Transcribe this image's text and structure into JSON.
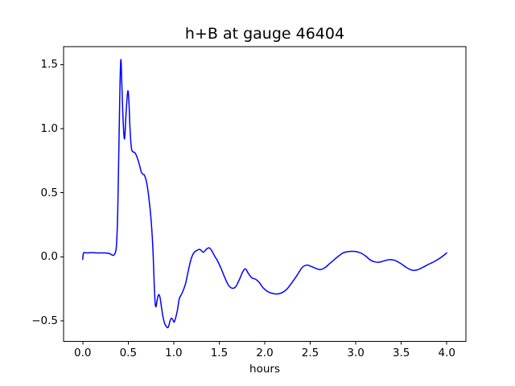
{
  "figure": {
    "background": "#ffffff",
    "frame_color": "#000000",
    "text_color": "#000000"
  },
  "chart_data": {
    "type": "line",
    "title": "h+B at gauge 46404",
    "xlabel": "hours",
    "ylabel": "",
    "grid": false,
    "legend": null,
    "xlim": [
      -0.21,
      4.21
    ],
    "ylim": [
      -0.66,
      1.64
    ],
    "xticks": [
      0.0,
      0.5,
      1.0,
      1.5,
      2.0,
      2.5,
      3.0,
      3.5,
      4.0
    ],
    "xtick_labels": [
      "0.0",
      "0.5",
      "1.0",
      "1.5",
      "2.0",
      "2.5",
      "3.0",
      "3.5",
      "4.0"
    ],
    "yticks": [
      -0.5,
      0.0,
      0.5,
      1.0,
      1.5
    ],
    "ytick_labels": [
      "−0.5",
      "0.0",
      "0.5",
      "1.0",
      "1.5"
    ],
    "series": [
      {
        "color": "#0000ff",
        "line_width": 1.5,
        "points": [
          [
            0.0,
            -0.02
          ],
          [
            0.01,
            0.03
          ],
          [
            0.04,
            0.03
          ],
          [
            0.08,
            0.032
          ],
          [
            0.12,
            0.032
          ],
          [
            0.16,
            0.03
          ],
          [
            0.2,
            0.03
          ],
          [
            0.24,
            0.03
          ],
          [
            0.28,
            0.028
          ],
          [
            0.31,
            0.02
          ],
          [
            0.33,
            0.012
          ],
          [
            0.35,
            0.02
          ],
          [
            0.37,
            0.08
          ],
          [
            0.385,
            0.35
          ],
          [
            0.4,
            0.95
          ],
          [
            0.41,
            1.35
          ],
          [
            0.42,
            1.54
          ],
          [
            0.43,
            1.35
          ],
          [
            0.445,
            1.05
          ],
          [
            0.46,
            0.92
          ],
          [
            0.475,
            1.1
          ],
          [
            0.49,
            1.26
          ],
          [
            0.5,
            1.29
          ],
          [
            0.51,
            1.18
          ],
          [
            0.52,
            1.0
          ],
          [
            0.535,
            0.85
          ],
          [
            0.55,
            0.82
          ],
          [
            0.57,
            0.815
          ],
          [
            0.59,
            0.79
          ],
          [
            0.61,
            0.75
          ],
          [
            0.63,
            0.7
          ],
          [
            0.645,
            0.66
          ],
          [
            0.66,
            0.645
          ],
          [
            0.675,
            0.64
          ],
          [
            0.69,
            0.615
          ],
          [
            0.705,
            0.57
          ],
          [
            0.72,
            0.5
          ],
          [
            0.735,
            0.41
          ],
          [
            0.75,
            0.3
          ],
          [
            0.765,
            0.15
          ],
          [
            0.775,
            0.0
          ],
          [
            0.785,
            -0.2
          ],
          [
            0.795,
            -0.35
          ],
          [
            0.805,
            -0.39
          ],
          [
            0.82,
            -0.33
          ],
          [
            0.835,
            -0.295
          ],
          [
            0.85,
            -0.32
          ],
          [
            0.865,
            -0.39
          ],
          [
            0.88,
            -0.46
          ],
          [
            0.9,
            -0.52
          ],
          [
            0.92,
            -0.545
          ],
          [
            0.94,
            -0.55
          ],
          [
            0.96,
            -0.5
          ],
          [
            0.975,
            -0.48
          ],
          [
            0.99,
            -0.49
          ],
          [
            1.005,
            -0.51
          ],
          [
            1.02,
            -0.48
          ],
          [
            1.04,
            -0.42
          ],
          [
            1.06,
            -0.33
          ],
          [
            1.08,
            -0.3
          ],
          [
            1.1,
            -0.27
          ],
          [
            1.13,
            -0.21
          ],
          [
            1.16,
            -0.11
          ],
          [
            1.19,
            -0.02
          ],
          [
            1.22,
            0.03
          ],
          [
            1.255,
            0.05
          ],
          [
            1.29,
            0.057
          ],
          [
            1.325,
            0.036
          ],
          [
            1.36,
            0.06
          ],
          [
            1.39,
            0.07
          ],
          [
            1.42,
            0.045
          ],
          [
            1.45,
            0.005
          ],
          [
            1.48,
            -0.03
          ],
          [
            1.52,
            -0.09
          ],
          [
            1.56,
            -0.16
          ],
          [
            1.6,
            -0.22
          ],
          [
            1.64,
            -0.245
          ],
          [
            1.68,
            -0.235
          ],
          [
            1.72,
            -0.18
          ],
          [
            1.76,
            -0.115
          ],
          [
            1.79,
            -0.095
          ],
          [
            1.82,
            -0.13
          ],
          [
            1.86,
            -0.165
          ],
          [
            1.9,
            -0.175
          ],
          [
            1.94,
            -0.2
          ],
          [
            1.98,
            -0.24
          ],
          [
            2.03,
            -0.27
          ],
          [
            2.08,
            -0.285
          ],
          [
            2.14,
            -0.29
          ],
          [
            2.19,
            -0.28
          ],
          [
            2.24,
            -0.255
          ],
          [
            2.29,
            -0.21
          ],
          [
            2.35,
            -0.15
          ],
          [
            2.41,
            -0.085
          ],
          [
            2.46,
            -0.065
          ],
          [
            2.51,
            -0.075
          ],
          [
            2.56,
            -0.09
          ],
          [
            2.61,
            -0.1
          ],
          [
            2.66,
            -0.085
          ],
          [
            2.71,
            -0.055
          ],
          [
            2.76,
            -0.025
          ],
          [
            2.81,
            0.005
          ],
          [
            2.86,
            0.03
          ],
          [
            2.91,
            0.04
          ],
          [
            2.96,
            0.043
          ],
          [
            3.01,
            0.04
          ],
          [
            3.06,
            0.028
          ],
          [
            3.11,
            0.005
          ],
          [
            3.16,
            -0.025
          ],
          [
            3.21,
            -0.04
          ],
          [
            3.26,
            -0.042
          ],
          [
            3.31,
            -0.032
          ],
          [
            3.37,
            -0.022
          ],
          [
            3.43,
            -0.028
          ],
          [
            3.5,
            -0.055
          ],
          [
            3.56,
            -0.085
          ],
          [
            3.62,
            -0.105
          ],
          [
            3.67,
            -0.103
          ],
          [
            3.73,
            -0.085
          ],
          [
            3.79,
            -0.062
          ],
          [
            3.86,
            -0.038
          ],
          [
            3.93,
            -0.008
          ],
          [
            4.0,
            0.03
          ]
        ]
      }
    ]
  }
}
